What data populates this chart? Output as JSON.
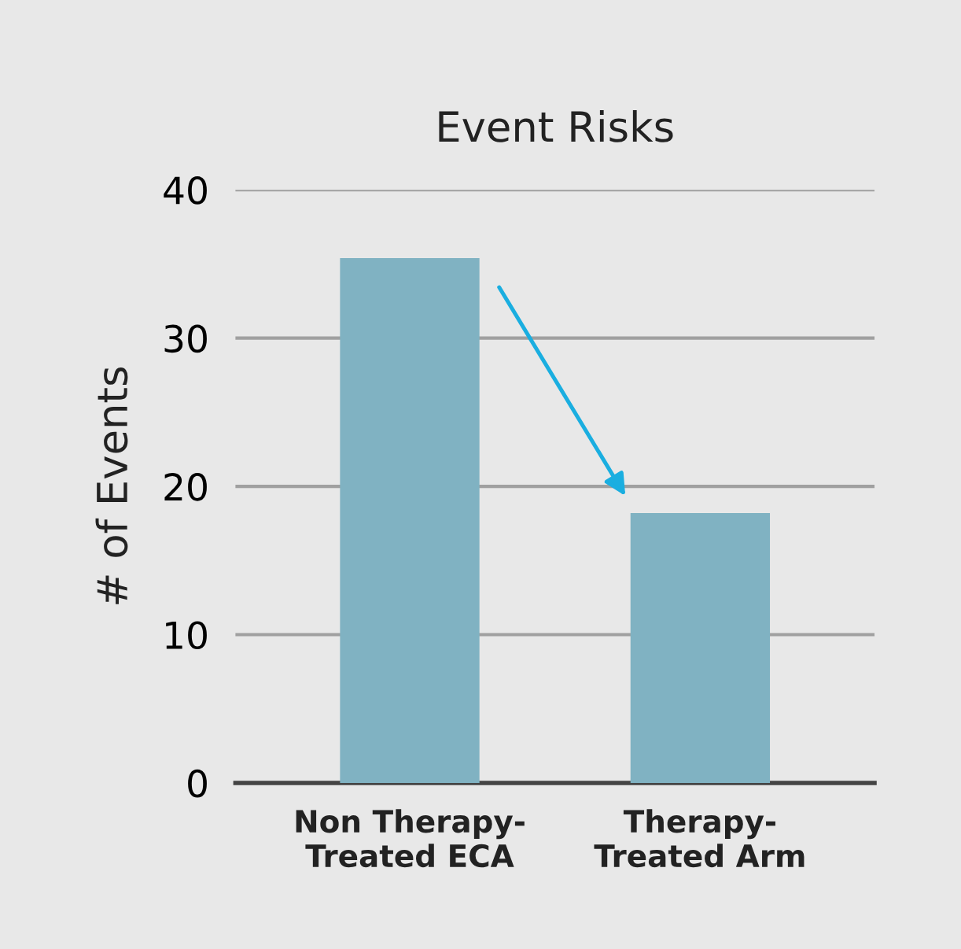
{
  "chart_data": {
    "type": "bar",
    "title": "Event Risks",
    "ylabel": "# of Events",
    "categories": [
      "Non Therapy-\nTreated ECA",
      "Therapy-\nTreated Arm"
    ],
    "values": [
      35.4,
      18.2
    ],
    "color": "#80b2c2",
    "ylim": [
      0,
      40
    ],
    "yticks": [
      0,
      10,
      20,
      30,
      40
    ],
    "grid": "y"
  }
}
